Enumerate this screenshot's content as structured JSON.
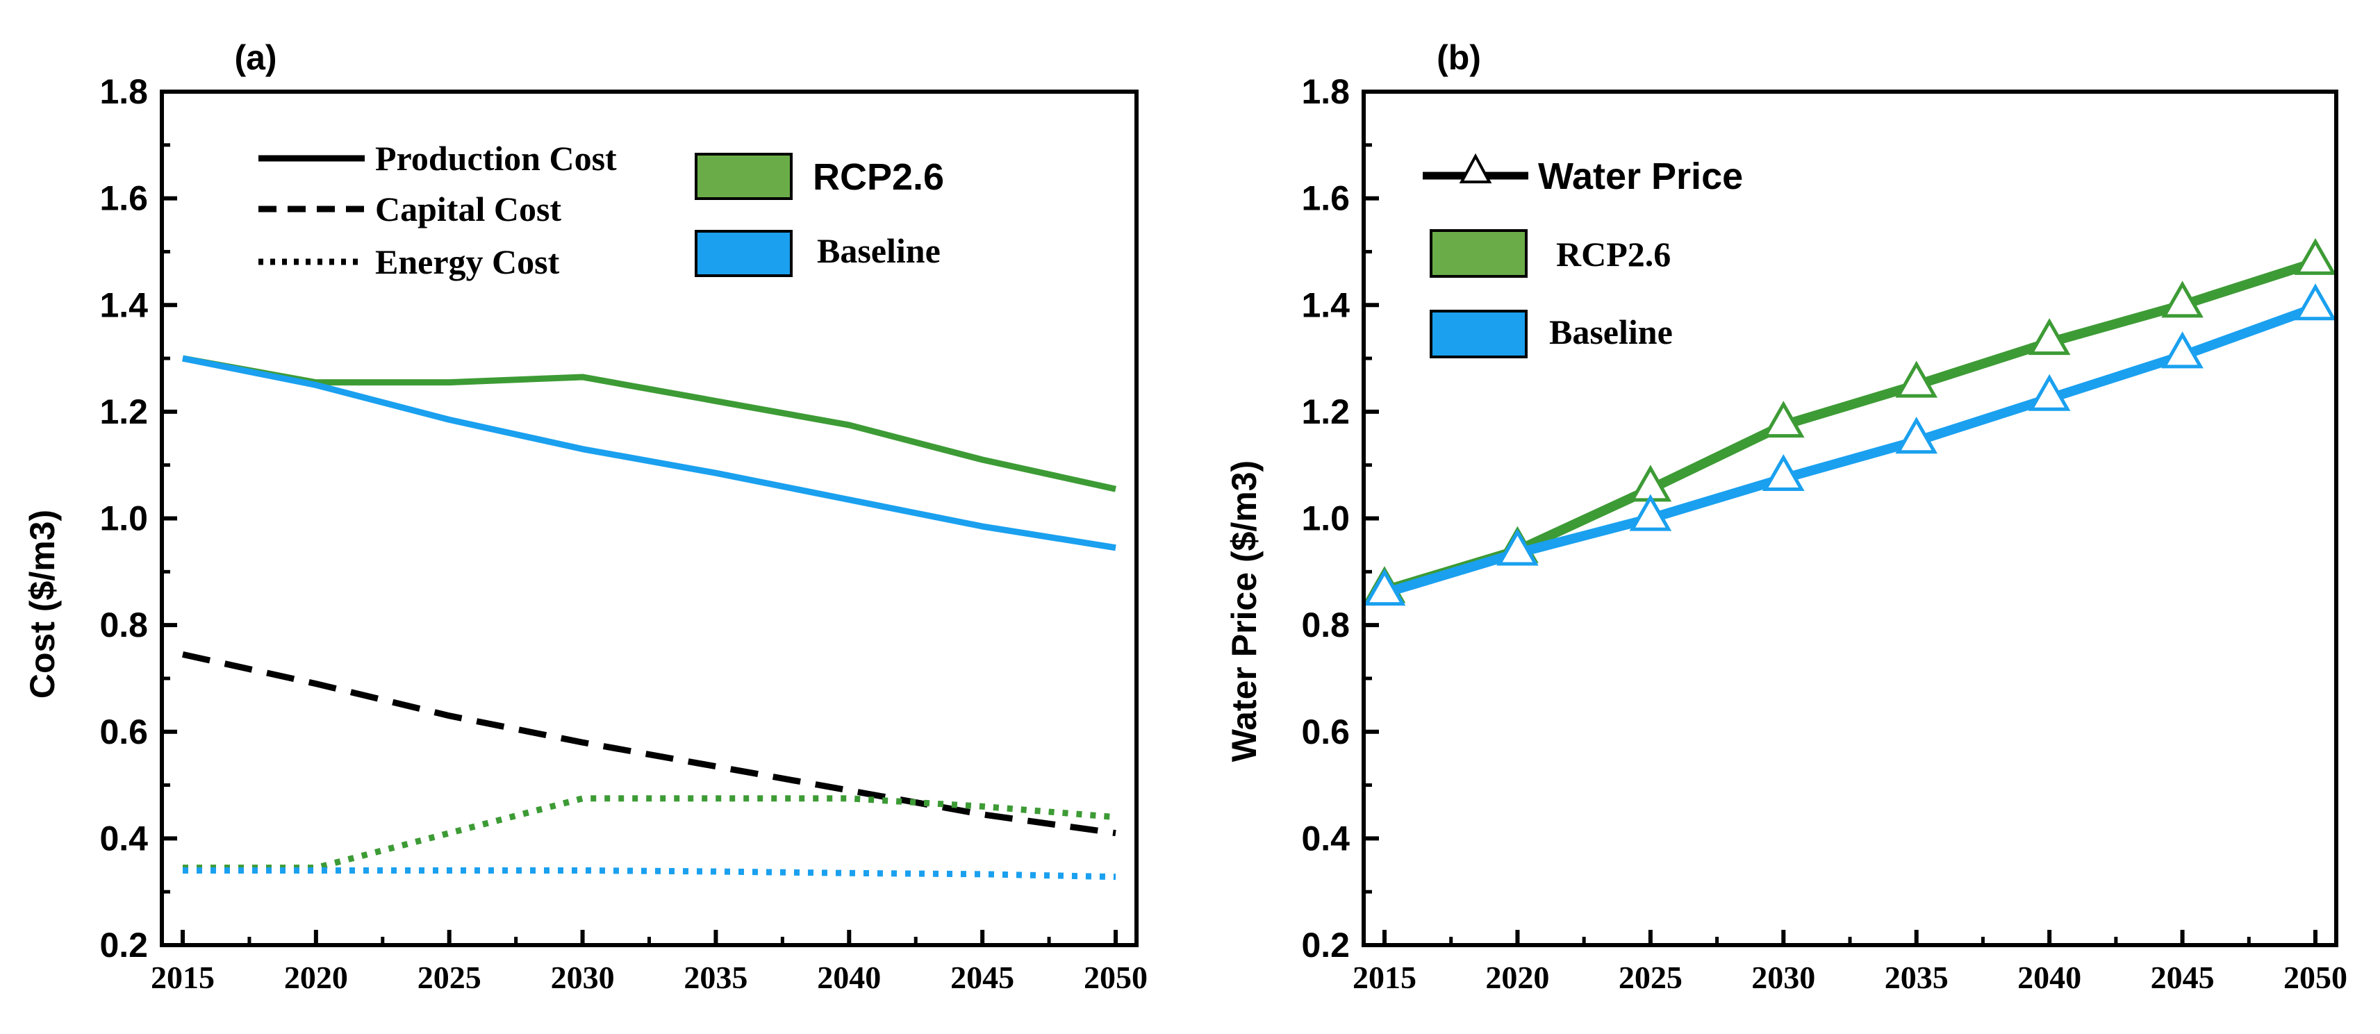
{
  "colors": {
    "rcp": "#3d9b35",
    "baseline": "#1aa0ef",
    "black": "#000000"
  },
  "chart_data": [
    {
      "id": "a",
      "type": "line",
      "panel_label": "(a)",
      "ylabel": "Cost ($/m3)",
      "xlabel": "",
      "x": [
        2015,
        2020,
        2025,
        2030,
        2035,
        2040,
        2045,
        2050
      ],
      "xlim": [
        2015,
        2050
      ],
      "ylim": [
        0.2,
        1.8
      ],
      "yticks": [
        "0.2",
        "0.4",
        "0.6",
        "0.8",
        "1.0",
        "1.2",
        "1.4",
        "1.6",
        "1.8"
      ],
      "series": [
        {
          "name": "Production Cost - RCP2.6",
          "scenario": "RCP2.6",
          "cost_type": "Production Cost",
          "dash": "solid",
          "values": [
            1.3,
            1.255,
            1.255,
            1.265,
            1.22,
            1.175,
            1.11,
            1.055
          ]
        },
        {
          "name": "Production Cost - Baseline",
          "scenario": "Baseline",
          "cost_type": "Production Cost",
          "dash": "solid",
          "values": [
            1.3,
            1.25,
            1.185,
            1.13,
            1.085,
            1.035,
            0.985,
            0.945
          ]
        },
        {
          "name": "Capital Cost",
          "scenario": "Both",
          "cost_type": "Capital Cost",
          "dash": "dash",
          "values": [
            0.745,
            0.69,
            0.63,
            0.58,
            0.535,
            0.49,
            0.445,
            0.41
          ]
        },
        {
          "name": "Energy Cost - RCP2.6",
          "scenario": "RCP2.6",
          "cost_type": "Energy Cost",
          "dash": "dot",
          "values": [
            0.345,
            0.345,
            0.41,
            0.475,
            0.475,
            0.475,
            0.46,
            0.44
          ]
        },
        {
          "name": "Energy Cost - Baseline",
          "scenario": "Baseline",
          "cost_type": "Energy Cost",
          "dash": "dot",
          "values": [
            0.34,
            0.34,
            0.34,
            0.34,
            0.338,
            0.335,
            0.333,
            0.328
          ]
        }
      ],
      "legend_line_types": [
        "Production Cost",
        "Capital Cost",
        "Energy Cost"
      ],
      "legend_scenarios": [
        "RCP2.6",
        "Baseline"
      ]
    },
    {
      "id": "b",
      "type": "line",
      "panel_label": "(b)",
      "ylabel": "Water Price ($/m3)",
      "xlabel": "",
      "x": [
        2015,
        2020,
        2025,
        2030,
        2035,
        2040,
        2045,
        2050
      ],
      "xlim": [
        2015,
        2050
      ],
      "ylim": [
        0.2,
        1.8
      ],
      "yticks": [
        "0.2",
        "0.4",
        "0.6",
        "0.8",
        "1.0",
        "1.2",
        "1.4",
        "1.6",
        "1.8"
      ],
      "series": [
        {
          "name": "Water Price - RCP2.6",
          "scenario": "RCP2.6",
          "marker": "open-triangle",
          "values": [
            0.865,
            0.94,
            1.055,
            1.175,
            1.25,
            1.33,
            1.4,
            1.48
          ]
        },
        {
          "name": "Water Price - Baseline",
          "scenario": "Baseline",
          "marker": "open-triangle",
          "values": [
            0.86,
            0.935,
            1.0,
            1.075,
            1.145,
            1.225,
            1.305,
            1.395
          ]
        }
      ],
      "legend_line_types": [
        "Water Price"
      ],
      "legend_scenarios": [
        "RCP2.6",
        "Baseline"
      ]
    }
  ]
}
